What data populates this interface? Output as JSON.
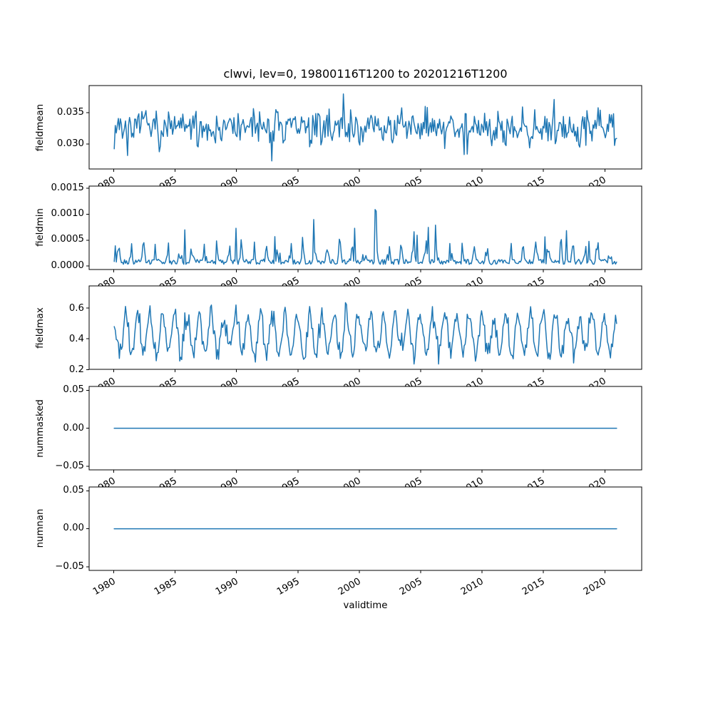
{
  "chart_data": {
    "type": "line",
    "title": "clwvi, lev=0, 19800116T1200 to 20201216T1200",
    "xlabel": "validtime",
    "line_color": "#1f77b4",
    "background": "#ffffff",
    "grid": false,
    "legend": null,
    "n_points": 492,
    "cadence": "monthly values, 1980-01-16 to 2020-12-16",
    "xlim": [
      1977.996,
      2023.004
    ],
    "x_data_start": 1980.0417,
    "x_data_end": 2020.9583,
    "x_ticks": [
      1980,
      1985,
      1990,
      1995,
      2000,
      2005,
      2010,
      2015,
      2020
    ],
    "x_tick_labels": [
      "1980",
      "1985",
      "1990",
      "1995",
      "2000",
      "2005",
      "2010",
      "2015",
      "2020"
    ],
    "subplots": [
      {
        "ylabel": "fieldmean",
        "yticks": [
          0.03,
          0.035
        ],
        "ytick_labels": [
          "0.030",
          "0.035"
        ],
        "ylim": [
          0.026,
          0.0393
        ],
        "series": {
          "kind": "noisy-seasonal",
          "mean": 0.0326,
          "seasonal_amp": 0.0007,
          "noise_amp": 0.003,
          "outlier_prob": 0.05,
          "outlier_amp": 0.006,
          "min": 0.0266,
          "max": 0.039,
          "seed": 7,
          "description": "noisy monthly mean around 0.0326, range ~0.0267-0.0390"
        }
      },
      {
        "ylabel": "fieldmin",
        "yticks": [
          0.0,
          0.0005,
          0.001,
          0.0015
        ],
        "ytick_labels": [
          "0.0000",
          "0.0005",
          "0.0010",
          "0.0015"
        ],
        "ylim": [
          -7.14e-05,
          0.0015434
        ],
        "series": {
          "kind": "spiky",
          "base": 3e-05,
          "base_noise": 0.0001,
          "seasonal_amp": 0.0005,
          "spike_prob": 0.03,
          "spike_amp": 0.0006,
          "min": 0.0,
          "max": 0.00147,
          "seed": 13,
          "description": "near-zero baseline with seasonal bumps to ~0.0005 and spikes up to ~0.00147"
        }
      },
      {
        "ylabel": "fieldmax",
        "yticks": [
          0.2,
          0.4,
          0.6
        ],
        "ytick_labels": [
          "0.2",
          "0.4",
          "0.6"
        ],
        "ylim": [
          0.2002,
          0.7448
        ],
        "series": {
          "kind": "seasonal",
          "mean": 0.425,
          "seasonal_amp": 0.13,
          "noise_amp": 0.09,
          "outlier_prob": 0.06,
          "outlier_amp": 0.1,
          "min": 0.225,
          "max": 0.72,
          "seed": 29,
          "description": "annual oscillation between ~0.23 and ~0.72"
        }
      },
      {
        "ylabel": "nummasked",
        "yticks": [
          -0.05,
          0.0,
          0.05
        ],
        "ytick_labels": [
          "−0.05",
          "0.00",
          "0.05"
        ],
        "ylim": [
          -0.055,
          0.055
        ],
        "series": {
          "kind": "constant",
          "value": 0.0,
          "description": "constant zero"
        }
      },
      {
        "ylabel": "numnan",
        "yticks": [
          -0.05,
          0.0,
          0.05
        ],
        "ytick_labels": [
          "−0.05",
          "0.00",
          "0.05"
        ],
        "ylim": [
          -0.055,
          0.055
        ],
        "series": {
          "kind": "constant",
          "value": 0.0,
          "description": "constant zero"
        }
      }
    ]
  }
}
